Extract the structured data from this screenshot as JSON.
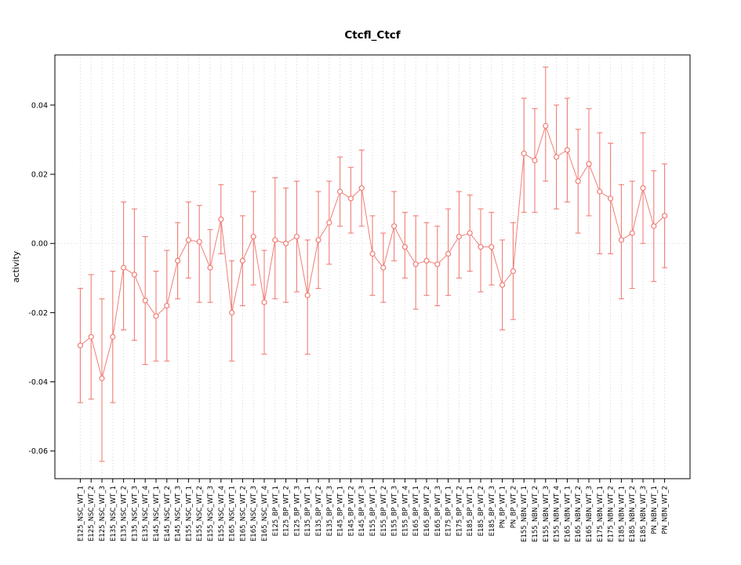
{
  "window": {
    "background": "#ffffff"
  },
  "chart_data": {
    "type": "scatter",
    "title": "Ctcfl_Ctcf",
    "xlabel": "",
    "ylabel": "activity",
    "ylim": [
      -0.068,
      0.0545
    ],
    "yticks": [
      -0.06,
      -0.04,
      -0.02,
      0.0,
      0.02,
      0.04
    ],
    "grid": "vertical-dotted",
    "zero_line": true,
    "legend": "none",
    "point_style": "open-circle-with-error-bars-connected-line",
    "point_color": "#f07e76",
    "grid_color": "#d4d4d4",
    "axis_color": "#000000",
    "categories": [
      "E125_NSC_WT_1",
      "E125_NSC_WT_2",
      "E125_NSC_WT_3",
      "E135_NSC_WT_1",
      "E135_NSC_WT_2",
      "E135_NSC_WT_3",
      "E135_NSC_WT_4",
      "E145_NSC_WT_1",
      "E145_NSC_WT_2",
      "E145_NSC_WT_3",
      "E155_NSC_WT_1",
      "E155_NSC_WT_2",
      "E155_NSC_WT_3",
      "E155_NSC_WT_4",
      "E165_NSC_WT_1",
      "E165_NSC_WT_2",
      "E165_NSC_WT_3",
      "E165_NSC_WT_4",
      "E125_BP_WT_1",
      "E125_BP_WT_2",
      "E125_BP_WT_3",
      "E135_BP_WT_1",
      "E135_BP_WT_2",
      "E135_BP_WT_3",
      "E145_BP_WT_1",
      "E145_BP_WT_2",
      "E145_BP_WT_3",
      "E155_BP_WT_1",
      "E155_BP_WT_2",
      "E155_BP_WT_3",
      "E155_BP_WT_4",
      "E165_BP_WT_1",
      "E165_BP_WT_2",
      "E165_BP_WT_3",
      "E175_BP_WT_1",
      "E175_BP_WT_2",
      "E185_BP_WT_1",
      "E185_BP_WT_2",
      "E185_BP_WT_3",
      "PN_BP_WT_1",
      "PN_BP_WT_2",
      "E155_NBN_WT_1",
      "E155_NBN_WT_2",
      "E155_NBN_WT_3",
      "E155_NBN_WT_4",
      "E165_NBN_WT_1",
      "E165_NBN_WT_2",
      "E165_NBN_WT_3",
      "E175_NBN_WT_1",
      "E175_NBN_WT_2",
      "E185_NBN_WT_1",
      "E185_NBN_WT_2",
      "E185_NBN_WT_3",
      "PN_NBN_WT_1",
      "PN_NBN_WT_2"
    ],
    "series": [
      {
        "name": "activity",
        "values": [
          -0.0295,
          -0.027,
          -0.039,
          -0.027,
          -0.007,
          -0.009,
          -0.0165,
          -0.021,
          -0.018,
          -0.005,
          0.001,
          0.0005,
          -0.007,
          0.007,
          -0.02,
          -0.005,
          0.002,
          -0.017,
          0.001,
          0.0,
          0.002,
          -0.015,
          0.001,
          0.006,
          0.015,
          0.013,
          0.016,
          -0.003,
          -0.007,
          0.005,
          -0.001,
          -0.006,
          -0.005,
          -0.006,
          -0.003,
          0.002,
          0.003,
          -0.001,
          -0.001,
          -0.012,
          -0.008,
          0.026,
          0.024,
          0.034,
          0.025,
          0.027,
          0.018,
          0.023,
          0.015,
          0.013,
          0.001,
          0.003,
          0.016,
          0.005,
          0.008
        ],
        "err_low": [
          -0.046,
          -0.045,
          -0.063,
          -0.046,
          -0.025,
          -0.028,
          -0.035,
          -0.034,
          -0.034,
          -0.016,
          -0.01,
          -0.017,
          -0.017,
          -0.003,
          -0.034,
          -0.018,
          -0.012,
          -0.032,
          -0.016,
          -0.017,
          -0.014,
          -0.032,
          -0.013,
          -0.006,
          0.005,
          0.003,
          0.005,
          -0.015,
          -0.017,
          -0.005,
          -0.01,
          -0.019,
          -0.015,
          -0.018,
          -0.015,
          -0.01,
          -0.008,
          -0.014,
          -0.012,
          -0.025,
          -0.022,
          0.009,
          0.009,
          0.018,
          0.01,
          0.012,
          0.003,
          0.008,
          -0.003,
          -0.003,
          -0.016,
          -0.013,
          0.0,
          -0.011,
          -0.007
        ],
        "err_high": [
          -0.013,
          -0.009,
          -0.016,
          -0.008,
          0.012,
          0.01,
          0.002,
          -0.008,
          -0.002,
          0.006,
          0.012,
          0.011,
          0.004,
          0.017,
          -0.005,
          0.008,
          0.015,
          -0.002,
          0.019,
          0.016,
          0.018,
          0.001,
          0.015,
          0.018,
          0.025,
          0.022,
          0.027,
          0.008,
          0.003,
          0.015,
          0.009,
          0.008,
          0.006,
          0.005,
          0.01,
          0.015,
          0.014,
          0.01,
          0.009,
          0.001,
          0.006,
          0.042,
          0.039,
          0.051,
          0.04,
          0.042,
          0.033,
          0.039,
          0.032,
          0.029,
          0.017,
          0.018,
          0.032,
          0.021,
          0.023
        ]
      }
    ]
  }
}
